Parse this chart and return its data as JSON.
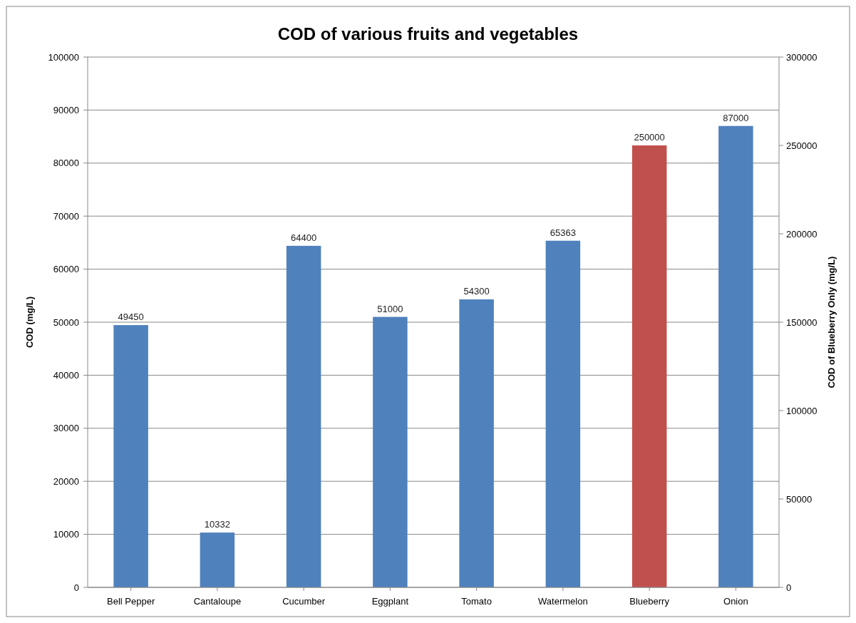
{
  "chart_data": {
    "type": "bar",
    "title": "COD of various fruits and vegetables",
    "ylabel": "COD (mg/L)",
    "y2label": "COD of Blueberry Only (mg/L)",
    "categories": [
      "Bell Pepper",
      "Cantaloupe",
      "Cucumber",
      "Eggplant",
      "Tomato",
      "Watermelon",
      "Blueberry",
      "Onion"
    ],
    "series": [
      {
        "color": "#4f81bd",
        "values": [
          49450,
          10332,
          64400,
          51000,
          54300,
          65363,
          null,
          87000
        ]
      },
      {
        "color": "#c0504d",
        "axis": "y2",
        "values": [
          null,
          null,
          null,
          null,
          null,
          null,
          250000,
          null
        ]
      }
    ],
    "ylim": [
      0,
      100000
    ],
    "yticks": [
      0,
      10000,
      20000,
      30000,
      40000,
      50000,
      60000,
      70000,
      80000,
      90000,
      100000
    ],
    "y2lim": [
      0,
      300000
    ],
    "y2ticks": [
      0,
      50000,
      100000,
      150000,
      200000,
      250000,
      300000
    ],
    "grid": "y",
    "data_labels": true
  }
}
